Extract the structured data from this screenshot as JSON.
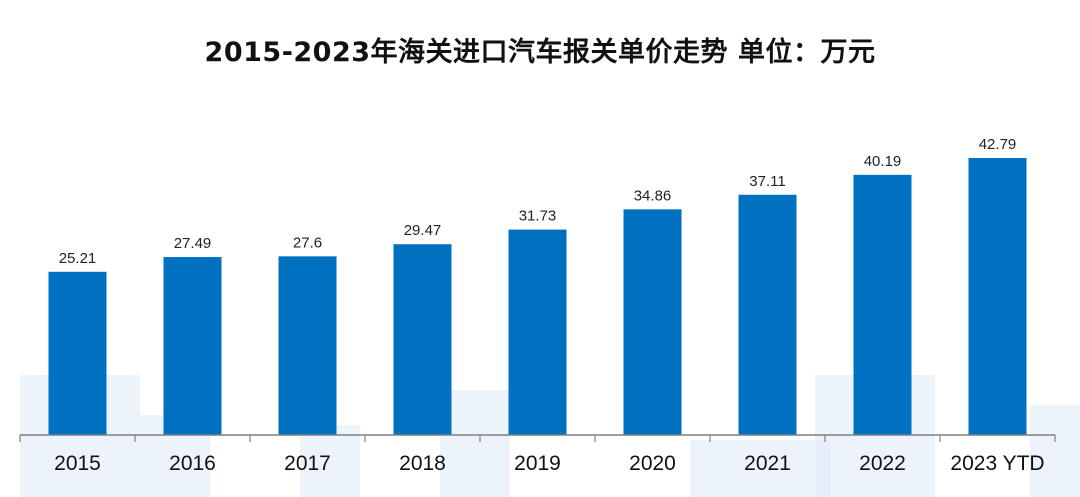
{
  "chart_data": {
    "type": "bar",
    "title": "2015-2023年海关进口汽车报关单价走势  单位：万元",
    "categories": [
      "2015",
      "2016",
      "2017",
      "2018",
      "2019",
      "2020",
      "2021",
      "2022",
      "2023 YTD"
    ],
    "values": [
      25.21,
      27.49,
      27.6,
      29.47,
      31.73,
      34.86,
      37.11,
      40.19,
      42.79
    ],
    "value_labels": [
      "25.21",
      "27.49",
      "27.6",
      "29.47",
      "31.73",
      "34.86",
      "37.11",
      "40.19",
      "42.79"
    ],
    "xlabel": "",
    "ylabel": "",
    "ylim": [
      0,
      45
    ],
    "grid": false,
    "bar_color": "#0070c0"
  }
}
